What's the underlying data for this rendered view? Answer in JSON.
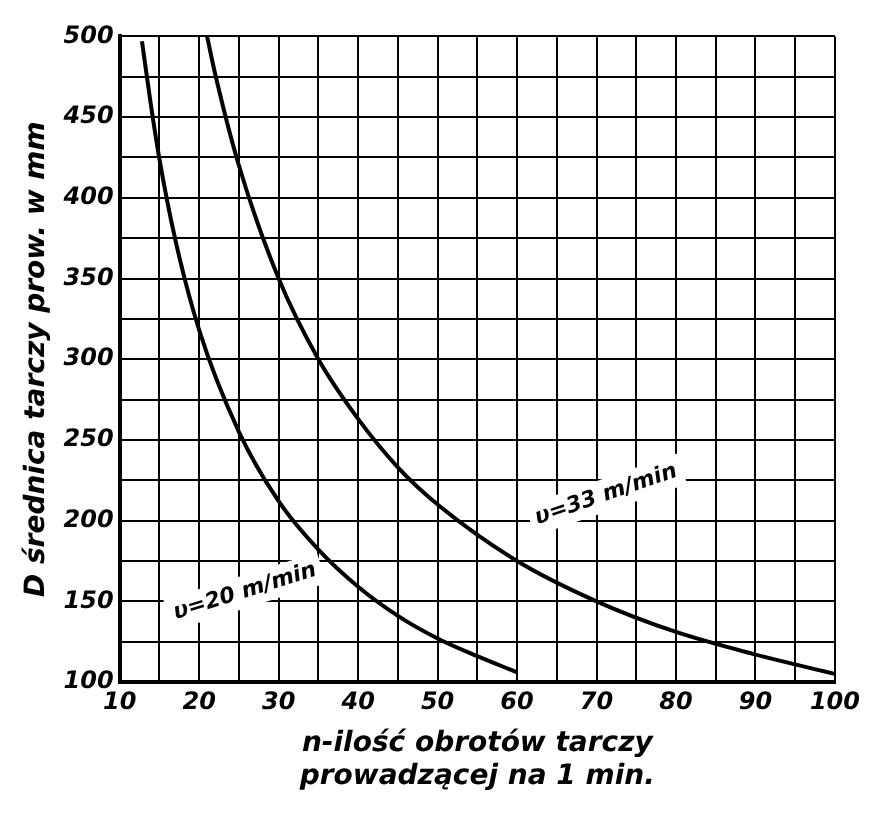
{
  "chart_data": {
    "type": "line",
    "xlabel": "n-ilość obrotów tarczy\nprowadzącej na 1 min.",
    "ylabel": "D średnica tarczy prow. w mm",
    "series": [
      {
        "color": "#000000",
        "x": [
          12.8,
          14,
          15,
          17,
          20,
          25,
          30,
          35,
          40,
          45,
          50,
          55,
          60
        ],
        "values": [
          497,
          455,
          424,
          374,
          318,
          255,
          212,
          182,
          159,
          141,
          127,
          116,
          106
        ]
      },
      {
        "color": "#000000",
        "x": [
          21,
          22,
          25,
          30,
          35,
          40,
          45,
          50,
          60,
          70,
          80,
          90,
          100
        ],
        "values": [
          500,
          477,
          420,
          350,
          300,
          263,
          233,
          210,
          175,
          150,
          131,
          117,
          105
        ]
      }
    ],
    "xlim": [
      10,
      100
    ],
    "ylim": [
      100,
      500
    ],
    "xticks": [
      10,
      {
        "value": 15,
        "label": null
      },
      20,
      {
        "value": 25,
        "label": null
      },
      30,
      {
        "value": 35,
        "label": null
      },
      40,
      {
        "value": 45,
        "label": null
      },
      50,
      {
        "value": 55,
        "label": null
      },
      60,
      {
        "value": 65,
        "label": null
      },
      70,
      {
        "value": 75,
        "label": null
      },
      80,
      {
        "value": 85,
        "label": null
      },
      90,
      {
        "value": 95,
        "label": null
      },
      100
    ],
    "yticks": [
      100,
      {
        "value": 125,
        "label": null
      },
      150,
      {
        "value": 175,
        "label": null
      },
      200,
      {
        "value": 225,
        "label": null
      },
      250,
      {
        "value": 275,
        "label": null
      },
      300,
      {
        "value": 325,
        "label": null
      },
      350,
      {
        "value": 375,
        "label": null
      },
      400,
      {
        "value": 425,
        "label": null
      },
      450,
      {
        "value": 475,
        "label": null
      },
      500
    ],
    "annotations": [
      "υ=33 m/min",
      "υ=20 m/min"
    ],
    "grid": true,
    "legend": false,
    "marker": "none",
    "line_style": "solid"
  }
}
